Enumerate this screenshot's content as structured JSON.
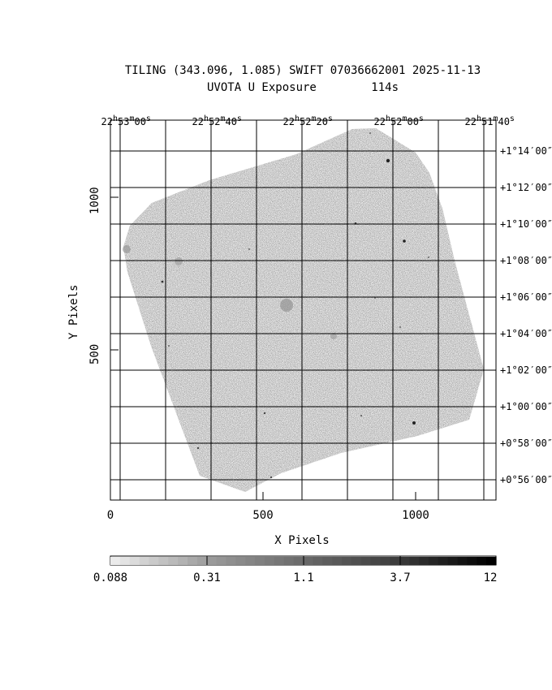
{
  "title": {
    "line1": "TILING (343.096, 1.085) SWIFT 07036662001 2025-11-13",
    "line2": "UVOTA U Exposure        114s"
  },
  "x_axis": {
    "label": "X Pixels",
    "ticks": [
      "0",
      "500",
      "1000"
    ],
    "range": [
      0,
      1260
    ]
  },
  "y_axis": {
    "label": "Y Pixels",
    "ticks": [
      "500",
      "1000"
    ],
    "range": [
      0,
      1190
    ]
  },
  "ra_axis": {
    "ticks": [
      {
        "h": "22",
        "m": "53",
        "s": "00"
      },
      {
        "h": "22",
        "m": "52",
        "s": "40"
      },
      {
        "h": "22",
        "m": "52",
        "s": "20"
      },
      {
        "h": "22",
        "m": "52",
        "s": "00"
      },
      {
        "h": "22",
        "m": "51",
        "s": "40"
      }
    ]
  },
  "dec_axis": {
    "ticks": [
      "+1°14′00″",
      "+1°12′00″",
      "+1°10′00″",
      "+1°08′00″",
      "+1°06′00″",
      "+1°04′00″",
      "+1°02′00″",
      "+1°00′00″",
      "+0°58′00″",
      "+0°56′00″"
    ]
  },
  "colorbar": {
    "labels": [
      "0.088",
      "0.31",
      "1.1",
      "3.7",
      "12"
    ],
    "min": 0.088,
    "max": 12,
    "scale": "log"
  },
  "colors": {
    "exposure_fill": "#a9a9a9",
    "grid": "#000000",
    "background": "#ffffff"
  }
}
